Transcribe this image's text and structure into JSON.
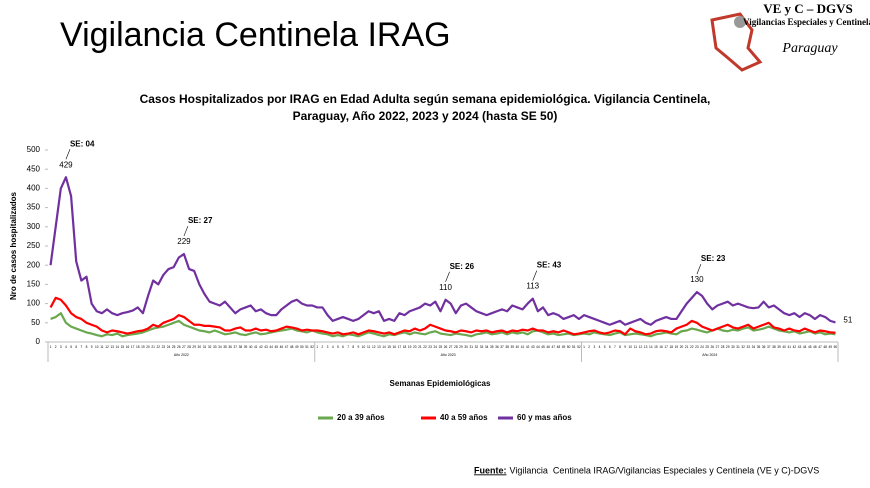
{
  "header": {
    "title": "Vigilancia Centinela IRAG",
    "logo_title": "VE y C – DGVS",
    "logo_subtitle": "Vigilancias Especiales y Centinela",
    "logo_country": "Paraguay"
  },
  "chart_data": {
    "type": "line",
    "title": [
      "Casos Hospitalizados por IRAG en Edad Adulta según semana epidemiológica. Vigilancia Centinela,",
      "Paraguay, Año 2022, 2023 y 2024 (hasta SE 50)"
    ],
    "y_label": "Nro de casos hospitalizados",
    "x_label": "Semanas Epidemiológicas",
    "groups": [
      "Año 2022",
      "Año 2023",
      "Año 2024"
    ],
    "categories": [
      "1",
      "2",
      "3",
      "4",
      "5",
      "6",
      "7",
      "8",
      "9",
      "10",
      "11",
      "12",
      "13",
      "14",
      "15",
      "16",
      "17",
      "18",
      "19",
      "20",
      "21",
      "22",
      "23",
      "24",
      "25",
      "26",
      "27",
      "28",
      "29",
      "30",
      "31",
      "32",
      "33",
      "34",
      "35",
      "36",
      "37",
      "38",
      "39",
      "40",
      "41",
      "42",
      "43",
      "44",
      "45",
      "46",
      "47",
      "48",
      "49",
      "50",
      "51",
      "52",
      "1",
      "2",
      "3",
      "4",
      "5",
      "6",
      "7",
      "8",
      "9",
      "10",
      "11",
      "12",
      "13",
      "14",
      "15",
      "16",
      "17",
      "18",
      "19",
      "20",
      "21",
      "22",
      "23",
      "24",
      "25",
      "26",
      "27",
      "28",
      "29",
      "30",
      "31",
      "32",
      "33",
      "34",
      "35",
      "36",
      "37",
      "38",
      "39",
      "40",
      "41",
      "42",
      "43",
      "44",
      "45",
      "46",
      "47",
      "48",
      "49",
      "50",
      "51",
      "52",
      "1",
      "2",
      "3",
      "4",
      "5",
      "6",
      "7",
      "8",
      "9",
      "10",
      "11",
      "12",
      "13",
      "14",
      "15",
      "16",
      "17",
      "18",
      "19",
      "20",
      "21",
      "22",
      "23",
      "24",
      "25",
      "26",
      "27",
      "28",
      "29",
      "30",
      "31",
      "32",
      "33",
      "34",
      "35",
      "36",
      "37",
      "38",
      "39",
      "40",
      "41",
      "42",
      "43",
      "44",
      "45",
      "46",
      "47",
      "48",
      "49",
      "50"
    ],
    "ylim": [
      0,
      500
    ],
    "yticks": [
      0,
      50,
      100,
      150,
      200,
      250,
      300,
      350,
      400,
      450,
      500
    ],
    "annotations": [
      "SE: 04",
      "SE: 27",
      "SE: 26",
      "SE: 43",
      "SE: 23"
    ],
    "series": [
      {
        "name": "20 a 39 años",
        "color": "#6aa84f",
        "values": [
          60,
          65,
          75,
          50,
          40,
          35,
          30,
          25,
          22,
          18,
          15,
          20,
          18,
          22,
          15,
          18,
          20,
          22,
          25,
          30,
          35,
          38,
          40,
          45,
          50,
          55,
          45,
          40,
          35,
          30,
          28,
          25,
          30,
          25,
          20,
          22,
          25,
          20,
          18,
          22,
          25,
          20,
          22,
          25,
          28,
          30,
          32,
          35,
          30,
          28,
          25,
          30,
          25,
          22,
          20,
          15,
          18,
          15,
          20,
          18,
          15,
          20,
          25,
          22,
          18,
          15,
          20,
          18,
          22,
          25,
          20,
          25,
          22,
          20,
          25,
          28,
          22,
          20,
          18,
          22,
          20,
          18,
          15,
          20,
          22,
          25,
          20,
          22,
          25,
          20,
          25,
          22,
          25,
          20,
          28,
          30,
          25,
          20,
          22,
          18,
          20,
          22,
          18,
          20,
          22,
          20,
          25,
          22,
          20,
          18,
          22,
          25,
          18,
          20,
          22,
          20,
          18,
          15,
          20,
          22,
          25,
          22,
          20,
          28,
          30,
          35,
          32,
          28,
          25,
          30,
          35,
          30,
          28,
          32,
          30,
          35,
          38,
          30,
          32,
          35,
          40,
          35,
          30,
          28,
          25,
          28,
          22,
          25,
          28,
          22,
          25,
          20,
          22,
          20
        ]
      },
      {
        "name": "40 a 59 años",
        "color": "#ff0000",
        "values": [
          90,
          115,
          110,
          95,
          75,
          65,
          60,
          50,
          45,
          40,
          30,
          25,
          30,
          28,
          25,
          22,
          25,
          28,
          30,
          35,
          45,
          40,
          50,
          55,
          60,
          70,
          65,
          55,
          45,
          45,
          42,
          42,
          40,
          38,
          30,
          30,
          35,
          38,
          30,
          30,
          35,
          30,
          32,
          28,
          30,
          35,
          40,
          38,
          35,
          30,
          32,
          30,
          30,
          28,
          25,
          22,
          25,
          20,
          22,
          25,
          20,
          25,
          30,
          28,
          25,
          22,
          25,
          20,
          25,
          30,
          28,
          35,
          30,
          35,
          45,
          40,
          35,
          30,
          28,
          25,
          30,
          28,
          25,
          30,
          28,
          30,
          25,
          28,
          30,
          25,
          30,
          28,
          32,
          30,
          35,
          30,
          30,
          25,
          28,
          25,
          30,
          25,
          20,
          22,
          25,
          28,
          30,
          25,
          22,
          25,
          30,
          28,
          20,
          35,
          28,
          25,
          20,
          22,
          28,
          30,
          28,
          25,
          35,
          40,
          45,
          55,
          50,
          40,
          35,
          30,
          35,
          40,
          45,
          38,
          35,
          40,
          45,
          35,
          40,
          45,
          50,
          38,
          35,
          30,
          35,
          30,
          28,
          35,
          30,
          25,
          30,
          28,
          25,
          24
        ]
      },
      {
        "name": "60 y mas años",
        "color": "#7030a0",
        "values": [
          200,
          300,
          400,
          429,
          380,
          210,
          160,
          170,
          100,
          80,
          75,
          85,
          75,
          70,
          75,
          78,
          82,
          90,
          75,
          120,
          160,
          150,
          175,
          190,
          195,
          220,
          229,
          190,
          185,
          150,
          125,
          105,
          100,
          95,
          105,
          90,
          75,
          85,
          90,
          95,
          80,
          85,
          75,
          70,
          70,
          85,
          95,
          105,
          110,
          100,
          95,
          95,
          90,
          90,
          70,
          55,
          60,
          65,
          60,
          55,
          60,
          70,
          80,
          75,
          80,
          55,
          60,
          55,
          75,
          70,
          80,
          85,
          90,
          100,
          95,
          105,
          80,
          110,
          100,
          75,
          95,
          100,
          90,
          80,
          75,
          70,
          75,
          80,
          85,
          80,
          95,
          90,
          85,
          100,
          113,
          80,
          90,
          70,
          75,
          70,
          60,
          65,
          70,
          60,
          70,
          65,
          60,
          55,
          50,
          45,
          50,
          55,
          45,
          50,
          55,
          60,
          50,
          45,
          55,
          60,
          65,
          60,
          60,
          80,
          100,
          115,
          130,
          120,
          100,
          85,
          95,
          100,
          105,
          95,
          100,
          95,
          90,
          88,
          90,
          105,
          90,
          95,
          85,
          75,
          70,
          75,
          65,
          75,
          70,
          60,
          70,
          65,
          55,
          51
        ],
        "value_labels": [
          null,
          null,
          null,
          "429",
          null,
          null,
          null,
          null,
          null,
          null,
          null,
          null,
          null,
          null,
          null,
          null,
          null,
          null,
          null,
          null,
          null,
          null,
          null,
          null,
          null,
          null,
          "229",
          null,
          null,
          null,
          null,
          null,
          null,
          null,
          null,
          null,
          null,
          null,
          null,
          null,
          null,
          null,
          null,
          null,
          null,
          null,
          null,
          null,
          null,
          null,
          null,
          null,
          null,
          null,
          null,
          null,
          null,
          null,
          null,
          null,
          null,
          null,
          null,
          null,
          null,
          null,
          null,
          null,
          null,
          null,
          null,
          null,
          null,
          null,
          null,
          null,
          null,
          "110",
          null,
          null,
          null,
          null,
          null,
          null,
          null,
          null,
          null,
          null,
          null,
          null,
          null,
          null,
          null,
          null,
          "113",
          null,
          null,
          null,
          null,
          null,
          null,
          null,
          null,
          null,
          null,
          null,
          null,
          null,
          null,
          null,
          null,
          null,
          null,
          null,
          null,
          null,
          null,
          null,
          null,
          null,
          null,
          null,
          null,
          null,
          null,
          null,
          "130",
          null,
          null,
          null,
          null,
          null,
          null,
          null,
          null,
          null,
          null,
          null,
          null,
          null,
          null,
          null,
          null,
          null,
          null,
          null,
          null,
          null,
          null,
          null,
          null,
          null,
          null,
          "51"
        ]
      }
    ]
  },
  "footer": {
    "source_label": "Fuente:",
    "source_text": " Vigilancia  Centinela IRAG/Vigilancias Especiales y Centinela (VE y C)-DGVS"
  }
}
